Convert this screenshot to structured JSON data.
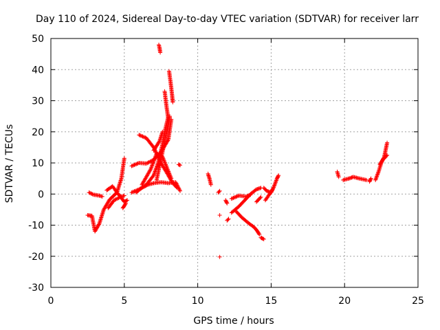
{
  "chart_data": {
    "type": "scatter",
    "title": "Day 110 of 2024, Sidereal Day-to-day VTEC variation (SDTVAR) for receiver larr",
    "xlabel": "GPS time / hours",
    "ylabel": "SDTVAR / TECUs",
    "xlim": [
      0,
      25
    ],
    "ylim": [
      -30,
      50
    ],
    "xticks": [
      0,
      5,
      10,
      15,
      20,
      25
    ],
    "yticks": [
      -30,
      -20,
      -10,
      0,
      10,
      20,
      30,
      40,
      50
    ],
    "grid": true,
    "marker": "+",
    "color": "#ff0000",
    "tracks": [
      [
        [
          2.5,
          -6.8
        ],
        [
          2.8,
          -7.0
        ],
        [
          3.0,
          -12.0
        ],
        [
          3.3,
          -9.5
        ],
        [
          3.6,
          -5.0
        ],
        [
          4.0,
          -1.8
        ],
        [
          4.5,
          0.5
        ],
        [
          4.8,
          5.0
        ],
        [
          5.0,
          11.5
        ]
      ],
      [
        [
          2.6,
          0.5
        ],
        [
          2.9,
          -0.2
        ],
        [
          3.3,
          -0.5
        ],
        [
          3.5,
          -0.8
        ]
      ],
      [
        [
          3.8,
          1.2
        ],
        [
          4.2,
          2.5
        ],
        [
          4.5,
          0.5
        ],
        [
          4.8,
          -1.2
        ],
        [
          5.0,
          -2.5
        ],
        [
          5.2,
          -2.0
        ]
      ],
      [
        [
          3.9,
          -4.5
        ],
        [
          4.3,
          -2.0
        ],
        [
          4.8,
          -0.8
        ],
        [
          5.0,
          -0.5
        ]
      ],
      [
        [
          4.9,
          -4.5
        ],
        [
          5.1,
          -3.0
        ]
      ],
      [
        [
          5.5,
          9.0
        ],
        [
          6.0,
          10.0
        ],
        [
          6.5,
          9.8
        ],
        [
          7.0,
          11.0
        ],
        [
          7.5,
          13.5
        ],
        [
          8.0,
          17.5
        ],
        [
          8.2,
          24.0
        ]
      ],
      [
        [
          5.5,
          0.5
        ],
        [
          6.0,
          1.5
        ],
        [
          6.5,
          3.0
        ],
        [
          7.0,
          6.0
        ],
        [
          7.3,
          10.0
        ],
        [
          7.6,
          16.0
        ],
        [
          7.8,
          21.0
        ],
        [
          8.0,
          25.0
        ]
      ],
      [
        [
          6.0,
          19.0
        ],
        [
          6.5,
          18.0
        ],
        [
          7.0,
          15.0
        ],
        [
          7.5,
          10.0
        ],
        [
          8.0,
          6.0
        ],
        [
          8.3,
          3.5
        ],
        [
          8.6,
          2.0
        ]
      ],
      [
        [
          5.8,
          0.5
        ],
        [
          6.2,
          2.0
        ],
        [
          6.6,
          3.0
        ],
        [
          7.0,
          3.5
        ],
        [
          7.5,
          3.8
        ],
        [
          8.0,
          3.5
        ],
        [
          8.5,
          3.8
        ],
        [
          8.8,
          1.0
        ]
      ],
      [
        [
          6.2,
          3.0
        ],
        [
          6.8,
          8.0
        ],
        [
          7.2,
          13.0
        ],
        [
          7.6,
          12.0
        ],
        [
          7.9,
          8.5
        ],
        [
          8.2,
          5.0
        ]
      ],
      [
        [
          7.2,
          4.5
        ],
        [
          7.8,
          18.0
        ],
        [
          8.1,
          25.0
        ]
      ],
      [
        [
          7.0,
          14.0
        ],
        [
          7.4,
          17.0
        ],
        [
          7.6,
          20.0
        ]
      ],
      [
        [
          7.35,
          48.0
        ],
        [
          7.4,
          47.0
        ],
        [
          7.45,
          45.5
        ]
      ],
      [
        [
          7.75,
          33.0
        ],
        [
          7.85,
          29.0
        ],
        [
          8.0,
          24.0
        ]
      ],
      [
        [
          8.05,
          39.5
        ],
        [
          8.15,
          36.0
        ],
        [
          8.25,
          32.0
        ],
        [
          8.3,
          29.5
        ]
      ],
      [
        [
          8.7,
          9.5
        ],
        [
          8.8,
          9.3
        ]
      ],
      [
        [
          10.7,
          6.5
        ],
        [
          10.8,
          5.0
        ],
        [
          10.9,
          3.0
        ]
      ],
      [
        [
          11.4,
          0.5
        ],
        [
          11.5,
          1.0
        ]
      ],
      [
        [
          11.5,
          -6.8
        ]
      ],
      [
        [
          11.5,
          -20.2
        ]
      ],
      [
        [
          11.9,
          -2.0
        ],
        [
          12.0,
          -3.0
        ]
      ],
      [
        [
          12.0,
          -8.5
        ],
        [
          12.1,
          -8.0
        ]
      ],
      [
        [
          12.3,
          -1.5
        ],
        [
          12.8,
          -0.5
        ],
        [
          13.3,
          -0.8
        ],
        [
          13.6,
          -0.2
        ]
      ],
      [
        [
          12.6,
          -5.5
        ],
        [
          13.0,
          -7.5
        ],
        [
          13.5,
          -9.5
        ],
        [
          13.8,
          -10.5
        ],
        [
          14.0,
          -11.5
        ],
        [
          14.2,
          -13.0
        ]
      ],
      [
        [
          12.3,
          -6.0
        ],
        [
          12.8,
          -4.0
        ],
        [
          13.2,
          -2.0
        ],
        [
          13.6,
          0.0
        ],
        [
          14.0,
          1.5
        ],
        [
          14.3,
          2.0
        ]
      ],
      [
        [
          14.3,
          -14.0
        ],
        [
          14.5,
          -14.5
        ]
      ],
      [
        [
          14.5,
          2.0
        ],
        [
          14.7,
          1.0
        ],
        [
          15.0,
          0.5
        ],
        [
          15.2,
          2.5
        ],
        [
          15.4,
          5.0
        ],
        [
          15.5,
          6.0
        ]
      ],
      [
        [
          14.6,
          -2.0
        ],
        [
          14.9,
          0.0
        ],
        [
          15.1,
          1.5
        ]
      ],
      [
        [
          14.0,
          -2.5
        ],
        [
          14.3,
          -1.0
        ]
      ],
      [
        [
          19.5,
          7.2
        ],
        [
          19.6,
          5.5
        ]
      ],
      [
        [
          19.9,
          4.5
        ],
        [
          20.3,
          5.0
        ],
        [
          20.6,
          5.5
        ],
        [
          21.0,
          5.0
        ],
        [
          21.5,
          4.5
        ]
      ],
      [
        [
          21.7,
          4.0
        ],
        [
          21.8,
          5.0
        ]
      ],
      [
        [
          22.1,
          4.5
        ],
        [
          22.3,
          7.0
        ],
        [
          22.5,
          10.0
        ],
        [
          22.7,
          12.0
        ],
        [
          22.9,
          16.5
        ]
      ],
      [
        [
          22.4,
          9.5
        ],
        [
          22.6,
          11.0
        ],
        [
          22.9,
          12.5
        ]
      ]
    ]
  }
}
